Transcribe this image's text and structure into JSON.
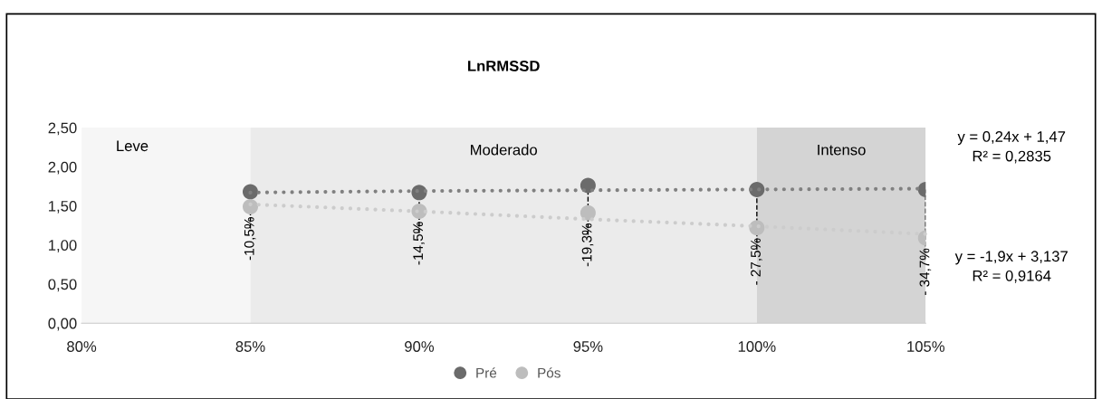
{
  "chart_data": {
    "type": "scatter",
    "title": "LnRMSSD",
    "x": [
      85,
      90,
      95,
      100,
      105
    ],
    "series": [
      {
        "name": "Pré",
        "color": "#6b6b6b",
        "values": [
          1.68,
          1.67,
          1.76,
          1.71,
          1.71
        ]
      },
      {
        "name": "Pós",
        "color": "#bdbdbd",
        "values": [
          1.49,
          1.43,
          1.41,
          1.22,
          1.09
        ]
      },
      {
        "type": "line",
        "color": "#808080",
        "values": [
          1.67,
          1.69,
          1.7,
          1.71,
          1.72
        ],
        "line_style": "dotted",
        "marker": "none"
      },
      {
        "type": "line",
        "color": "#cccccc",
        "values": [
          1.52,
          1.43,
          1.33,
          1.24,
          1.14
        ],
        "line_style": "dotted",
        "marker": "none"
      }
    ],
    "marker": "circle",
    "bands": [
      {
        "axis": "x",
        "from": 80,
        "to": 85,
        "label": "Leve",
        "color": "#f6f6f6"
      },
      {
        "axis": "x",
        "from": 85,
        "to": 100,
        "label": "Moderado",
        "color": "#ebebeb"
      },
      {
        "axis": "x",
        "from": 100,
        "to": 105,
        "label": "Intenso",
        "color": "#d4d4d4"
      }
    ],
    "annotations": [
      {
        "text": "-10,5%",
        "x": 85,
        "y": 1.49
      },
      {
        "text": "-14,5%",
        "x": 90,
        "y": 1.43
      },
      {
        "text": "-19,3%",
        "x": 95,
        "y": 1.41
      },
      {
        "text": "- 27,5%",
        "x": 100,
        "y": 1.22
      },
      {
        "text": "- 34,7%",
        "x": 105,
        "y": 1.09
      },
      "y = 0,24x + 1,47\nR² = 0,2835",
      "y = -1,9x + 3,137\nR² = 0,9164"
    ],
    "xlim": [
      80,
      105
    ],
    "xticks": [
      {
        "value": 80,
        "label": "80%"
      },
      {
        "value": 85,
        "label": "85%"
      },
      {
        "value": 90,
        "label": "90%"
      },
      {
        "value": 95,
        "label": "95%"
      },
      {
        "value": 100,
        "label": "100%"
      },
      {
        "value": 105,
        "label": "105%"
      }
    ],
    "ylim": [
      0,
      2.5
    ],
    "yticks": [
      {
        "value": 0,
        "label": "0,00"
      },
      {
        "value": 0.5,
        "label": "0,50"
      },
      {
        "value": 1,
        "label": "1,00"
      },
      {
        "value": 1.5,
        "label": "1,50"
      },
      {
        "value": 2,
        "label": "2,00"
      },
      {
        "value": 2.5,
        "label": "2,50"
      }
    ],
    "grid": false,
    "legend": "bottom"
  }
}
